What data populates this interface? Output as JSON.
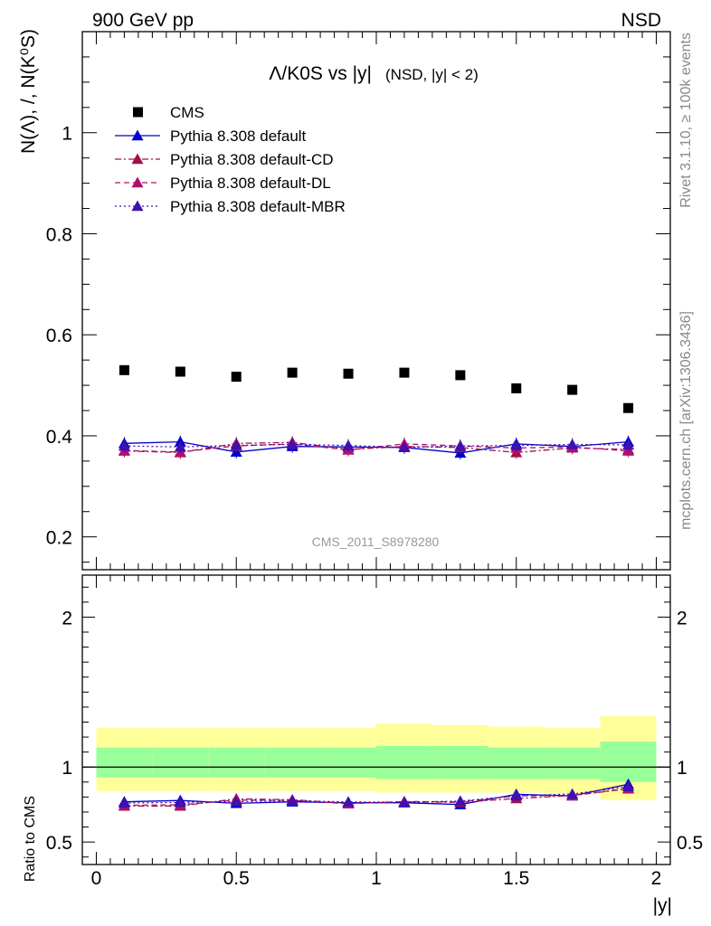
{
  "header": {
    "left": "900 GeV pp",
    "right": "NSD"
  },
  "side_labels": {
    "rivet": "Rivet 3.1.10, ≥ 100k events",
    "mcplots": "mcplots.cern.ch [arXiv:1306.3436]"
  },
  "chart_data": [
    {
      "type": "scatter",
      "title_main": "Λ/K0S vs |y|",
      "title_sub": "(NSD, |y| < 2)",
      "ylabel": "N(Λ), /, N(K⁰S)",
      "watermark": "CMS_2011_S8978280",
      "xlim": [
        -0.05,
        2.05
      ],
      "ylim": [
        0.135,
        1.2
      ],
      "y_ticks": [
        "0.2",
        "0.4",
        "0.6",
        "0.8",
        "1"
      ],
      "x": [
        0.1,
        0.3,
        0.5,
        0.7,
        0.9,
        1.1,
        1.3,
        1.5,
        1.7,
        1.9
      ],
      "series": [
        {
          "name": "CMS",
          "color": "#000000",
          "marker": "square",
          "line": "none",
          "values": [
            0.53,
            0.527,
            0.517,
            0.525,
            0.523,
            0.525,
            0.52,
            0.494,
            0.491,
            0.455
          ]
        },
        {
          "name": "Pythia 8.308 default",
          "color": "#0000cc",
          "marker": "triangle",
          "line": "solid",
          "values": [
            0.385,
            0.388,
            0.368,
            0.379,
            0.378,
            0.377,
            0.366,
            0.384,
            0.379,
            0.388
          ]
        },
        {
          "name": "Pythia 8.308 default-CD",
          "color": "#a0104a",
          "marker": "triangle",
          "line": "dashdot",
          "values": [
            0.37,
            0.367,
            0.385,
            0.387,
            0.373,
            0.379,
            0.377,
            0.367,
            0.376,
            0.373
          ]
        },
        {
          "name": "Pythia 8.308 default-DL",
          "color": "#b0106e",
          "marker": "triangle",
          "line": "dashed",
          "values": [
            0.371,
            0.368,
            0.38,
            0.384,
            0.372,
            0.384,
            0.38,
            0.376,
            0.378,
            0.37
          ]
        },
        {
          "name": "Pythia 8.308 default-MBR",
          "color": "#4010b0",
          "marker": "triangle",
          "line": "dotted",
          "values": [
            0.38,
            0.378,
            0.381,
            0.383,
            0.381,
            0.377,
            0.38,
            0.381,
            0.383,
            0.382
          ]
        }
      ]
    },
    {
      "type": "line",
      "ylabel": "Ratio to CMS",
      "xlabel": "|y|",
      "xlim": [
        -0.05,
        2.05
      ],
      "ylim": [
        0.35,
        2.28
      ],
      "x_ticks": [
        "0",
        "0.5",
        "1",
        "1.5",
        "2"
      ],
      "y_ticks": [
        "0.5",
        "1",
        "2"
      ],
      "bands": {
        "x_edges": [
          0.0,
          0.2,
          0.4,
          0.6,
          0.8,
          1.0,
          1.2,
          1.4,
          1.6,
          1.8,
          2.0
        ],
        "inner_low": [
          0.93,
          0.93,
          0.93,
          0.93,
          0.93,
          0.92,
          0.92,
          0.92,
          0.92,
          0.9
        ],
        "inner_high": [
          1.13,
          1.13,
          1.13,
          1.13,
          1.13,
          1.14,
          1.14,
          1.13,
          1.13,
          1.17
        ],
        "outer_low": [
          0.84,
          0.84,
          0.84,
          0.84,
          0.84,
          0.83,
          0.83,
          0.83,
          0.82,
          0.78
        ],
        "outer_high": [
          1.26,
          1.26,
          1.26,
          1.26,
          1.26,
          1.29,
          1.28,
          1.27,
          1.26,
          1.34
        ],
        "inner_color": "#99ff99",
        "outer_color": "#ffff99"
      },
      "x": [
        0.1,
        0.3,
        0.5,
        0.7,
        0.9,
        1.1,
        1.3,
        1.5,
        1.7,
        1.9
      ],
      "series": [
        {
          "name": "Pythia 8.308 default",
          "color": "#0000cc",
          "line": "solid",
          "values": [
            0.768,
            0.777,
            0.758,
            0.768,
            0.762,
            0.762,
            0.75,
            0.818,
            0.808,
            0.885
          ]
        },
        {
          "name": "Pythia 8.308 default-CD",
          "color": "#a0104a",
          "line": "dashdot",
          "values": [
            0.74,
            0.74,
            0.788,
            0.782,
            0.758,
            0.768,
            0.765,
            0.79,
            0.81,
            0.855
          ]
        },
        {
          "name": "Pythia 8.308 default-DL",
          "color": "#b0106e",
          "line": "dashed",
          "values": [
            0.745,
            0.748,
            0.78,
            0.778,
            0.755,
            0.77,
            0.768,
            0.808,
            0.81,
            0.858
          ]
        },
        {
          "name": "Pythia 8.308 default-MBR",
          "color": "#4010b0",
          "line": "dotted",
          "values": [
            0.76,
            0.764,
            0.77,
            0.774,
            0.768,
            0.765,
            0.773,
            0.808,
            0.82,
            0.87
          ]
        }
      ]
    }
  ]
}
